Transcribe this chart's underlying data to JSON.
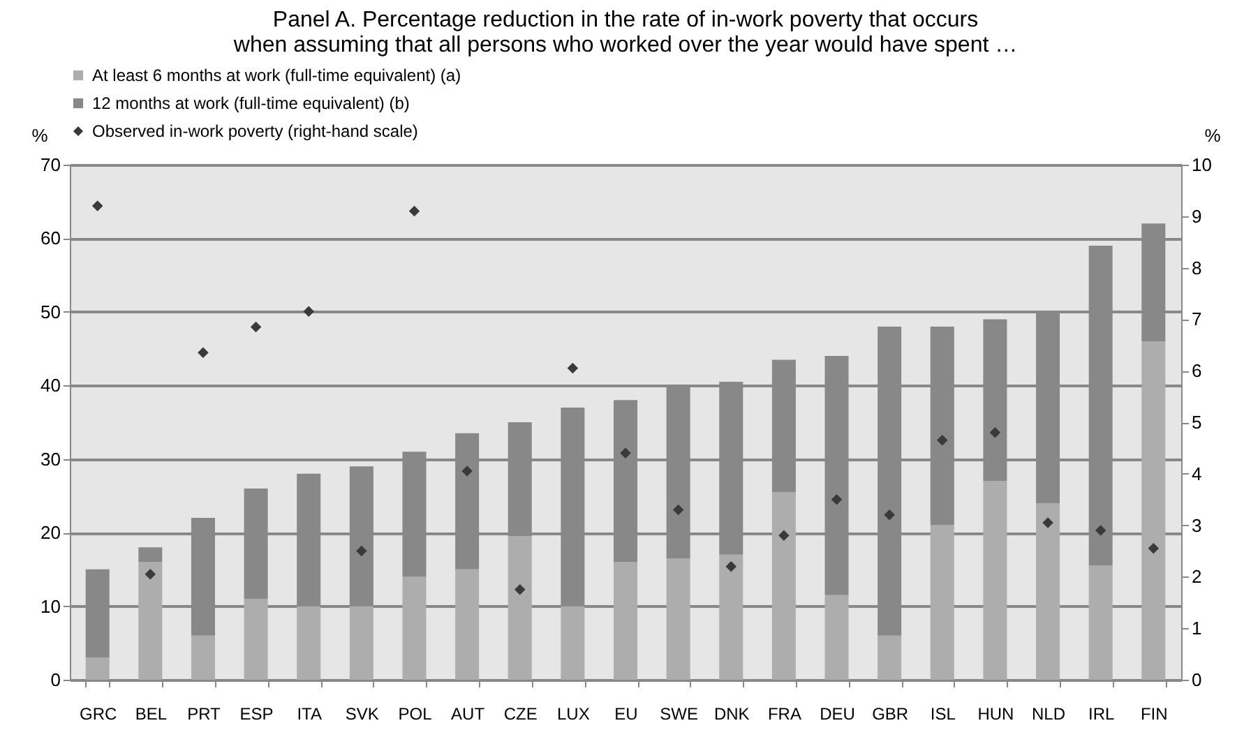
{
  "chart_data": {
    "type": "bar",
    "title": "Panel A. Percentage reduction in the rate of in-work poverty that occurs\nwhen assuming that all persons who worked over the year would have spent …",
    "ylabel": "%",
    "y2label": "%",
    "stacked": true,
    "grid": "y",
    "legend": "top",
    "marker": "diamond",
    "categories": [
      "GRC",
      "BEL",
      "PRT",
      "ESP",
      "ITA",
      "SVK",
      "POL",
      "AUT",
      "CZE",
      "LUX",
      "EU",
      "SWE",
      "DNK",
      "FRA",
      "DEU",
      "GBR",
      "ISL",
      "HUN",
      "NLD",
      "IRL",
      "FIN"
    ],
    "ylim": [
      0,
      70
    ],
    "yticks": [
      0,
      10,
      20,
      30,
      40,
      50,
      60,
      70
    ],
    "y2lim": [
      0,
      10
    ],
    "y2ticks": [
      0,
      1,
      2,
      3,
      4,
      5,
      6,
      7,
      8,
      9,
      10
    ],
    "series": [
      {
        "name": "At least 6 months at work (full-time equivalent) (a)",
        "color": "#adadad",
        "values": [
          3,
          16,
          6,
          11,
          10,
          10,
          14,
          15,
          19.5,
          10,
          16,
          16.5,
          17,
          25.5,
          11.5,
          6,
          21,
          27,
          24,
          15.5,
          46
        ]
      },
      {
        "name": "12 months at work (full-time equivalent) (b)",
        "color": "#888888",
        "values": [
          12,
          2,
          16,
          15,
          18,
          19,
          17,
          18.5,
          15.5,
          27,
          22,
          23.5,
          23.5,
          18,
          32.5,
          42,
          27,
          22,
          26,
          43.5,
          16
        ]
      },
      {
        "name": "Observed in-work poverty (right-hand scale)",
        "type": "scatter",
        "axis": "y2",
        "color": "#3a3a3a",
        "values": [
          9.2,
          2.05,
          6.35,
          6.85,
          7.15,
          2.5,
          9.1,
          4.05,
          1.75,
          6.05,
          4.4,
          3.3,
          2.2,
          2.8,
          3.5,
          3.2,
          4.65,
          4.8,
          3.05,
          2.9,
          2.55
        ]
      }
    ]
  }
}
